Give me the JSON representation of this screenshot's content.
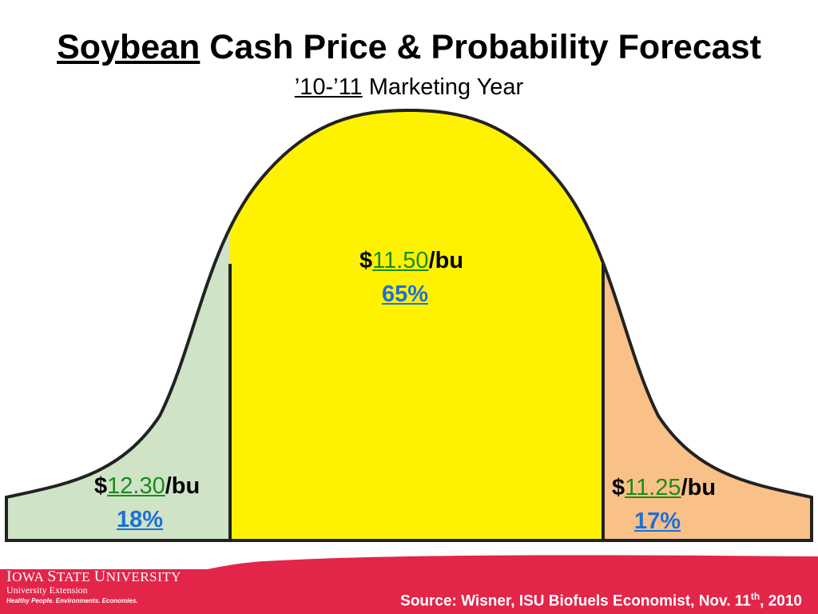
{
  "header": {
    "title_underlined": "Soybean",
    "title_rest": " Cash Price & Probability Forecast",
    "subtitle_underlined": "’10-’11",
    "subtitle_rest": " Marketing Year"
  },
  "chart_data": {
    "type": "area",
    "title": "Soybean Cash Price & Probability Forecast",
    "subtitle": "’10-’11 Marketing Year",
    "segments": [
      {
        "price_prefix": "$",
        "price": "12.30",
        "price_suffix": "/bu",
        "probability": "18%",
        "probability_value": 18,
        "color": "#cfe3c6"
      },
      {
        "price_prefix": "$",
        "price": "11.50",
        "price_suffix": "/bu",
        "probability": "65%",
        "probability_value": 65,
        "color": "#fff200"
      },
      {
        "price_prefix": "$",
        "price": "11.25",
        "price_suffix": "/bu",
        "probability": "17%",
        "probability_value": 17,
        "color": "#f9c088"
      }
    ]
  },
  "footer": {
    "logo_line1_a": "I",
    "logo_line1_b": "OWA ",
    "logo_line1_c": "S",
    "logo_line1_d": "TATE ",
    "logo_line1_e": "U",
    "logo_line1_f": "NIVERSITY",
    "logo_line2": "University Extension",
    "logo_line3": "Healthy People. Environments. Economies.",
    "source_main": "Source:  Wisner, ISU Biofuels Economist, Nov. 11",
    "source_sup": "th",
    "source_end": ",  2010",
    "brand_color": "#e3254a"
  }
}
